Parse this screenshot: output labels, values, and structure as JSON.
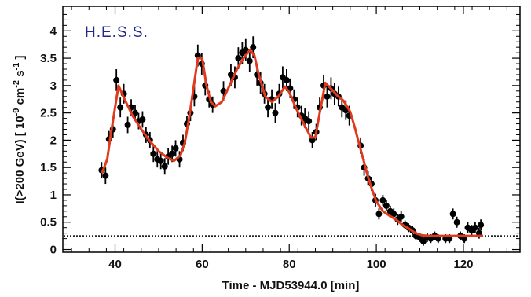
{
  "chart_data": {
    "type": "scatter",
    "label": "H.E.S.S.",
    "xlabel": "Time - MJD53944.0 [min]",
    "ylabel": "I(>200 GeV) [ 10^-9 cm^-2 s^-1 ]",
    "ylabel_parts": {
      "main": "I(>200 GeV) [ 10",
      "exp1": "-9",
      "mid1": " cm",
      "exp2": "-2",
      "mid2": " s",
      "exp3": "-1",
      "end": " ]"
    },
    "xlim": [
      28,
      133
    ],
    "ylim": [
      -0.05,
      4.45
    ],
    "x_ticks": [
      40,
      60,
      80,
      100,
      120
    ],
    "y_ticks": [
      0,
      0.5,
      1,
      1.5,
      2,
      2.5,
      3,
      3.5,
      4
    ],
    "x_tick_labels": [
      "40",
      "60",
      "80",
      "100",
      "120"
    ],
    "y_tick_labels": [
      "0",
      "0.5",
      "1",
      "1.5",
      "2",
      "2.5",
      "3",
      "3.5",
      "4"
    ],
    "grid": false,
    "colors": {
      "points": "#000000",
      "fit": "#e03a1e",
      "label": "#1f2a8c",
      "baseline": "#000000"
    },
    "baseline": {
      "y": 0.25,
      "style": "dotted"
    },
    "series": [
      {
        "kind": "points",
        "points": [
          {
            "x": 36.9,
            "y": 1.45,
            "err": 0.15
          },
          {
            "x": 37.8,
            "y": 1.35,
            "err": 0.15
          },
          {
            "x": 38.6,
            "y": 2.02,
            "err": 0.15
          },
          {
            "x": 39.5,
            "y": 2.2,
            "err": 0.15
          },
          {
            "x": 40.3,
            "y": 3.1,
            "err": 0.2
          },
          {
            "x": 41.2,
            "y": 2.6,
            "err": 0.18
          },
          {
            "x": 42.0,
            "y": 2.85,
            "err": 0.18
          },
          {
            "x": 42.9,
            "y": 2.28,
            "err": 0.15
          },
          {
            "x": 43.7,
            "y": 2.6,
            "err": 0.15
          },
          {
            "x": 44.6,
            "y": 2.5,
            "err": 0.15
          },
          {
            "x": 45.4,
            "y": 2.35,
            "err": 0.15
          },
          {
            "x": 46.3,
            "y": 2.38,
            "err": 0.15
          },
          {
            "x": 47.1,
            "y": 2.1,
            "err": 0.15
          },
          {
            "x": 48.0,
            "y": 2.0,
            "err": 0.15
          },
          {
            "x": 48.8,
            "y": 1.75,
            "err": 0.15
          },
          {
            "x": 49.7,
            "y": 1.65,
            "err": 0.15
          },
          {
            "x": 50.5,
            "y": 1.62,
            "err": 0.15
          },
          {
            "x": 51.4,
            "y": 1.52,
            "err": 0.15
          },
          {
            "x": 52.2,
            "y": 1.7,
            "err": 0.15
          },
          {
            "x": 53.1,
            "y": 1.75,
            "err": 0.15
          },
          {
            "x": 53.9,
            "y": 1.85,
            "err": 0.15
          },
          {
            "x": 54.8,
            "y": 1.65,
            "err": 0.15
          },
          {
            "x": 55.6,
            "y": 1.95,
            "err": 0.15
          },
          {
            "x": 56.5,
            "y": 2.3,
            "err": 0.15
          },
          {
            "x": 57.3,
            "y": 2.5,
            "err": 0.15
          },
          {
            "x": 58.2,
            "y": 2.8,
            "err": 0.18
          },
          {
            "x": 59.0,
            "y": 3.55,
            "err": 0.2
          },
          {
            "x": 59.9,
            "y": 3.4,
            "err": 0.2
          },
          {
            "x": 60.7,
            "y": 3.0,
            "err": 0.18
          },
          {
            "x": 61.6,
            "y": 2.75,
            "err": 0.15
          },
          {
            "x": 62.4,
            "y": 2.65,
            "err": 0.15
          },
          {
            "x": 64.9,
            "y": 2.9,
            "err": 0.18
          },
          {
            "x": 66.6,
            "y": 3.2,
            "err": 0.2
          },
          {
            "x": 67.5,
            "y": 3.15,
            "err": 0.2
          },
          {
            "x": 68.3,
            "y": 3.5,
            "err": 0.2
          },
          {
            "x": 69.2,
            "y": 3.6,
            "err": 0.2
          },
          {
            "x": 70.0,
            "y": 3.65,
            "err": 0.2
          },
          {
            "x": 70.9,
            "y": 3.45,
            "err": 0.2
          },
          {
            "x": 71.7,
            "y": 3.7,
            "err": 0.2
          },
          {
            "x": 72.6,
            "y": 3.2,
            "err": 0.2
          },
          {
            "x": 73.4,
            "y": 3.05,
            "err": 0.2
          },
          {
            "x": 74.3,
            "y": 2.85,
            "err": 0.18
          },
          {
            "x": 75.1,
            "y": 2.6,
            "err": 0.18
          },
          {
            "x": 76.0,
            "y": 2.75,
            "err": 0.18
          },
          {
            "x": 76.8,
            "y": 2.5,
            "err": 0.18
          },
          {
            "x": 77.7,
            "y": 2.85,
            "err": 0.18
          },
          {
            "x": 78.5,
            "y": 3.15,
            "err": 0.2
          },
          {
            "x": 79.4,
            "y": 3.1,
            "err": 0.2
          },
          {
            "x": 80.2,
            "y": 2.95,
            "err": 0.18
          },
          {
            "x": 81.1,
            "y": 2.75,
            "err": 0.18
          },
          {
            "x": 81.9,
            "y": 2.6,
            "err": 0.18
          },
          {
            "x": 82.8,
            "y": 2.45,
            "err": 0.18
          },
          {
            "x": 83.6,
            "y": 2.4,
            "err": 0.18
          },
          {
            "x": 84.5,
            "y": 2.35,
            "err": 0.18
          },
          {
            "x": 85.3,
            "y": 2.0,
            "err": 0.15
          },
          {
            "x": 86.2,
            "y": 2.15,
            "err": 0.15
          },
          {
            "x": 87.0,
            "y": 2.6,
            "err": 0.18
          },
          {
            "x": 87.9,
            "y": 3.0,
            "err": 0.2
          },
          {
            "x": 88.7,
            "y": 2.8,
            "err": 0.2
          },
          {
            "x": 89.6,
            "y": 2.95,
            "err": 0.2
          },
          {
            "x": 90.4,
            "y": 2.85,
            "err": 0.2
          },
          {
            "x": 91.3,
            "y": 2.8,
            "err": 0.18
          },
          {
            "x": 92.1,
            "y": 2.6,
            "err": 0.18
          },
          {
            "x": 93.0,
            "y": 2.55,
            "err": 0.18
          },
          {
            "x": 93.8,
            "y": 2.45,
            "err": 0.18
          },
          {
            "x": 96.4,
            "y": 1.9,
            "err": 0.15
          },
          {
            "x": 97.2,
            "y": 1.5,
            "err": 0.15
          },
          {
            "x": 98.1,
            "y": 1.3,
            "err": 0.13
          },
          {
            "x": 98.9,
            "y": 1.2,
            "err": 0.13
          },
          {
            "x": 99.8,
            "y": 0.9,
            "err": 0.12
          },
          {
            "x": 100.6,
            "y": 0.65,
            "err": 0.1
          },
          {
            "x": 101.5,
            "y": 0.9,
            "err": 0.1
          },
          {
            "x": 102.3,
            "y": 0.8,
            "err": 0.1
          },
          {
            "x": 103.2,
            "y": 0.7,
            "err": 0.1
          },
          {
            "x": 104.0,
            "y": 0.65,
            "err": 0.1
          },
          {
            "x": 104.9,
            "y": 0.55,
            "err": 0.1
          },
          {
            "x": 105.7,
            "y": 0.6,
            "err": 0.1
          },
          {
            "x": 106.6,
            "y": 0.45,
            "err": 0.08
          },
          {
            "x": 107.4,
            "y": 0.4,
            "err": 0.08
          },
          {
            "x": 108.3,
            "y": 0.35,
            "err": 0.08
          },
          {
            "x": 109.1,
            "y": 0.25,
            "err": 0.08
          },
          {
            "x": 110.0,
            "y": 0.22,
            "err": 0.08
          },
          {
            "x": 110.8,
            "y": 0.15,
            "err": 0.08
          },
          {
            "x": 111.7,
            "y": 0.22,
            "err": 0.08
          },
          {
            "x": 112.5,
            "y": 0.2,
            "err": 0.08
          },
          {
            "x": 113.4,
            "y": 0.25,
            "err": 0.08
          },
          {
            "x": 114.2,
            "y": 0.2,
            "err": 0.08
          },
          {
            "x": 115.9,
            "y": 0.2,
            "err": 0.08
          },
          {
            "x": 116.8,
            "y": 0.2,
            "err": 0.08
          },
          {
            "x": 117.6,
            "y": 0.65,
            "err": 0.1
          },
          {
            "x": 118.5,
            "y": 0.5,
            "err": 0.1
          },
          {
            "x": 119.3,
            "y": 0.25,
            "err": 0.08
          },
          {
            "x": 120.2,
            "y": 0.2,
            "err": 0.08
          },
          {
            "x": 121.0,
            "y": 0.4,
            "err": 0.1
          },
          {
            "x": 121.9,
            "y": 0.35,
            "err": 0.1
          },
          {
            "x": 122.7,
            "y": 0.4,
            "err": 0.1
          },
          {
            "x": 123.6,
            "y": 0.3,
            "err": 0.1
          },
          {
            "x": 124.0,
            "y": 0.45,
            "err": 0.1
          }
        ]
      },
      {
        "kind": "fit-line",
        "points": [
          [
            37.0,
            1.4
          ],
          [
            38.2,
            1.65
          ],
          [
            39.0,
            2.1
          ],
          [
            40.0,
            2.6
          ],
          [
            40.8,
            3.0
          ],
          [
            42.0,
            2.78
          ],
          [
            44.0,
            2.45
          ],
          [
            46.0,
            2.2
          ],
          [
            48.0,
            1.98
          ],
          [
            50.0,
            1.8
          ],
          [
            52.0,
            1.68
          ],
          [
            53.5,
            1.62
          ],
          [
            55.0,
            1.72
          ],
          [
            56.0,
            1.95
          ],
          [
            57.0,
            2.4
          ],
          [
            58.0,
            2.95
          ],
          [
            59.0,
            3.5
          ],
          [
            60.0,
            3.5
          ],
          [
            61.0,
            3.0
          ],
          [
            62.0,
            2.7
          ],
          [
            63.0,
            2.62
          ],
          [
            64.5,
            2.7
          ],
          [
            66.0,
            2.95
          ],
          [
            68.0,
            3.3
          ],
          [
            69.5,
            3.5
          ],
          [
            71.0,
            3.65
          ],
          [
            72.0,
            3.55
          ],
          [
            73.0,
            3.2
          ],
          [
            74.5,
            2.8
          ],
          [
            76.0,
            2.7
          ],
          [
            77.5,
            2.8
          ],
          [
            79.0,
            2.98
          ],
          [
            80.0,
            2.88
          ],
          [
            81.5,
            2.6
          ],
          [
            83.0,
            2.35
          ],
          [
            85.0,
            2.05
          ],
          [
            86.0,
            2.05
          ],
          [
            87.0,
            2.5
          ],
          [
            88.3,
            3.05
          ],
          [
            89.5,
            2.95
          ],
          [
            91.0,
            2.82
          ],
          [
            92.5,
            2.72
          ],
          [
            94.0,
            2.52
          ],
          [
            95.0,
            2.25
          ],
          [
            96.0,
            1.95
          ],
          [
            97.0,
            1.65
          ],
          [
            98.0,
            1.35
          ],
          [
            99.0,
            1.1
          ],
          [
            100.0,
            0.88
          ],
          [
            101.5,
            0.7
          ],
          [
            103.0,
            0.62
          ],
          [
            104.5,
            0.55
          ],
          [
            106.0,
            0.45
          ],
          [
            107.5,
            0.38
          ],
          [
            109.0,
            0.3
          ],
          [
            110.5,
            0.26
          ],
          [
            112.0,
            0.25
          ],
          [
            124.5,
            0.25
          ]
        ]
      }
    ]
  }
}
